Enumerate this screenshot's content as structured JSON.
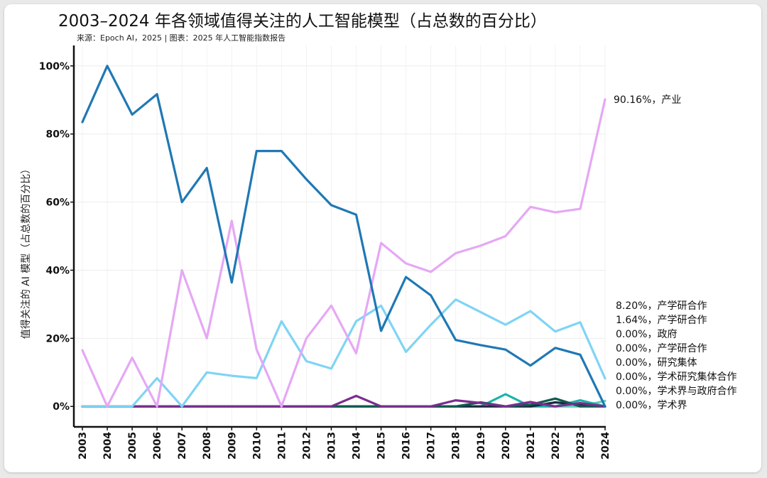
{
  "chart_data": {
    "type": "line",
    "title": "2003–2024 年各领域值得关注的人工智能模型（占总数的百分比）",
    "subtitle": "来源：Epoch AI，2025 | 图表：2025 年人工智能指数报告",
    "ylabel": "值得关注的 AI 模型（占总数的百分比）",
    "xlabel": "",
    "ylim": [
      -6,
      106
    ],
    "yticks": [
      0,
      20,
      40,
      60,
      80,
      100
    ],
    "ytick_labels": [
      "0%",
      "20%",
      "40%",
      "60%",
      "80%",
      "100%"
    ],
    "grid": true,
    "x": [
      "2003",
      "2004",
      "2005",
      "2006",
      "2007",
      "2008",
      "2009",
      "2010",
      "2011",
      "2012",
      "2013",
      "2014",
      "2015",
      "2016",
      "2017",
      "2018",
      "2019",
      "2020",
      "2021",
      "2022",
      "2023",
      "2024"
    ],
    "series": [
      {
        "name": "学术界",
        "color": "#1f78b4",
        "end_label": "0.00%，学术界",
        "values": [
          83.5,
          100,
          85.7,
          91.7,
          60,
          70,
          36.4,
          75,
          75,
          66.7,
          59.1,
          56.3,
          22.2,
          38,
          32.6,
          19.5,
          18,
          16.7,
          12,
          17.2,
          15.2,
          0
        ]
      },
      {
        "name": "产业",
        "color": "#e5a8f5",
        "end_label": "90.16%，产业",
        "values": [
          16.5,
          0,
          14.3,
          0,
          40,
          20,
          54.5,
          16.7,
          0,
          20,
          29.6,
          15.6,
          48,
          42,
          39.5,
          45,
          47.2,
          50,
          58.6,
          57,
          58,
          90.16
        ]
      },
      {
        "name": "产学研合作",
        "color": "#7fd4f5",
        "end_label": "8.20%，产学研合作",
        "values": [
          0,
          0,
          0,
          8.3,
          0,
          10,
          9,
          8.3,
          25,
          13.3,
          11.1,
          25,
          29.6,
          16,
          24,
          31.4,
          27.7,
          24,
          28,
          22,
          24.7,
          8.2
        ]
      },
      {
        "name": "政府",
        "color": "#7b2d8e",
        "end_label": "0.00%，政府",
        "values": [
          0,
          0,
          0,
          0,
          0,
          0,
          0,
          0,
          0,
          0,
          0,
          3.1,
          0,
          0,
          0,
          1.8,
          1,
          0,
          1.3,
          0,
          1,
          0
        ]
      },
      {
        "name": "研究集体",
        "color": "#0f5b4e",
        "end_label": "0.00%，研究集体",
        "values": [
          0,
          0,
          0,
          0,
          0,
          0,
          0,
          0,
          0,
          0,
          0,
          0,
          0,
          0,
          0,
          0,
          1.2,
          0,
          0.5,
          2.3,
          0,
          0
        ]
      },
      {
        "name": "学术研究集体合作",
        "color": "#1b2a40",
        "end_label": "0.00%，学术研究集体合作",
        "values": [
          0,
          0,
          0,
          0,
          0,
          0,
          0,
          0,
          0,
          0,
          0,
          0,
          0,
          0,
          0,
          0,
          0,
          0,
          0,
          1.2,
          0.5,
          0
        ]
      },
      {
        "name": "学术界与政府合作",
        "color": "#19b4a8",
        "end_label": "0.00%，学术界与政府合作",
        "values": [
          0,
          0,
          0,
          0,
          0,
          0,
          0,
          0,
          0,
          0,
          0,
          0,
          0,
          0,
          0,
          0,
          0,
          3.6,
          0,
          0,
          1.8,
          0
        ]
      },
      {
        "name": "产学研合作",
        "color": "#5fd1bd",
        "end_label": "1.64%，产学研合作",
        "values": [
          0,
          0,
          0,
          0,
          0,
          0,
          0,
          0,
          0,
          0,
          0,
          0,
          0,
          0,
          0,
          0,
          0,
          0,
          0,
          0,
          0,
          1.64
        ]
      },
      {
        "name": "产学研合作",
        "color": "#17a0c4",
        "end_label": "0.00%，产学研合作",
        "values": [
          0,
          0,
          0,
          0,
          0,
          0,
          0,
          0,
          0,
          0,
          0,
          0,
          0,
          0,
          0,
          0,
          0,
          0,
          0,
          0,
          0,
          0
        ]
      }
    ],
    "end_labels_order": [
      "8.20%，产学研合作",
      "1.64%，产学研合作",
      "0.00%，政府",
      "0.00%，产学研合作",
      "0.00%，研究集体",
      "0.00%，学术研究集体合作",
      "0.00%，学术界与政府合作",
      "0.00%，学术界"
    ],
    "top_label": "90.16%，产业"
  }
}
